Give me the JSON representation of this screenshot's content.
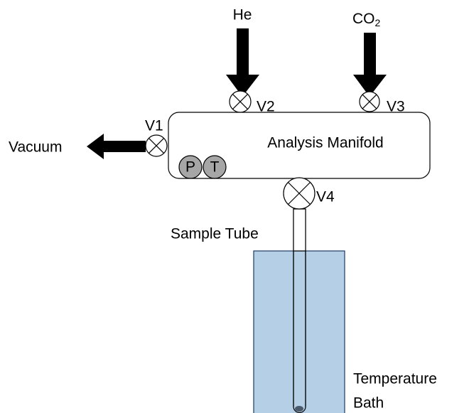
{
  "inlets": [
    {
      "label": "He",
      "valve": "V2"
    },
    {
      "label": {
        "text": "CO",
        "subscript": "2"
      },
      "valve": "V3"
    }
  ],
  "outlet": {
    "label": "Vacuum",
    "valve": "V1"
  },
  "manifold": {
    "label": "Analysis Manifold",
    "gauges": [
      "P",
      "T"
    ]
  },
  "sample": {
    "label": "Sample Tube",
    "valve": "V4"
  },
  "bath": {
    "label": [
      "Temperature",
      "Bath"
    ]
  }
}
